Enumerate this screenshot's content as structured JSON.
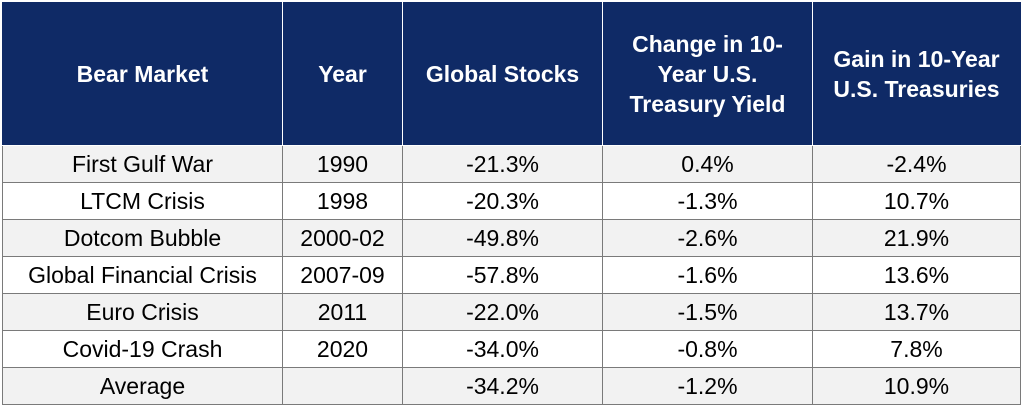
{
  "headers": [
    "Bear Market",
    "Year",
    "Global Stocks",
    "Change in 10-Year U.S. Treasury Yield",
    "Gain in 10-Year U.S. Treasuries"
  ],
  "rows": [
    [
      "First Gulf War",
      "1990",
      "-21.3%",
      "0.4%",
      "-2.4%"
    ],
    [
      "LTCM Crisis",
      "1998",
      "-20.3%",
      "-1.3%",
      "10.7%"
    ],
    [
      "Dotcom Bubble",
      "2000-02",
      "-49.8%",
      "-2.6%",
      "21.9%"
    ],
    [
      "Global Financial Crisis",
      "2007-09",
      "-57.8%",
      "-1.6%",
      "13.6%"
    ],
    [
      "Euro Crisis",
      "2011",
      "-22.0%",
      "-1.5%",
      "13.7%"
    ],
    [
      "Covid-19 Crash",
      "2020",
      "-34.0%",
      "-0.8%",
      "7.8%"
    ],
    [
      "Average",
      "",
      "-34.2%",
      "-1.2%",
      "10.9%"
    ]
  ],
  "colors": {
    "header_bg": "#0f2a66",
    "header_text": "#ffffff",
    "row_alt_bg": "#f2f2f2",
    "border": "#7a7a7a"
  }
}
